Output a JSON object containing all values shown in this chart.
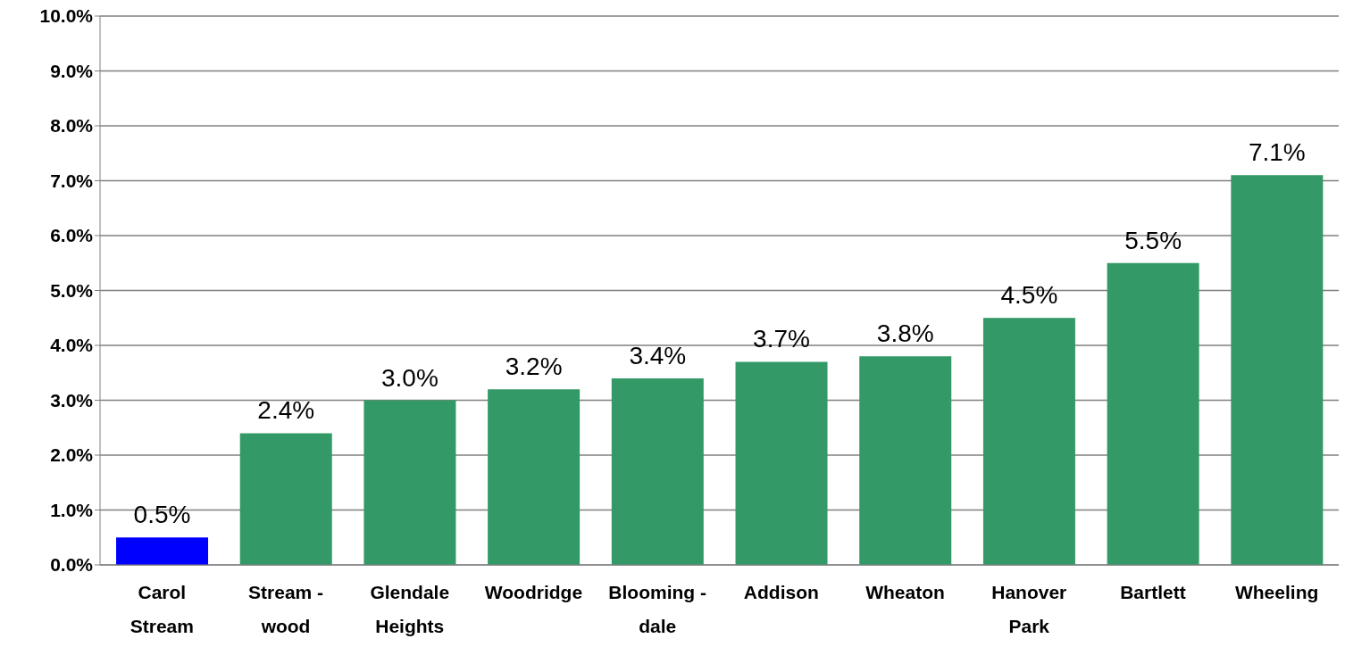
{
  "chart_data": {
    "type": "bar",
    "categories": [
      "Carol Stream",
      "Stream - wood",
      "Glendale Heights",
      "Woodridge",
      "Blooming - dale",
      "Addison",
      "Wheaton",
      "Hanover Park",
      "Bartlett",
      "Wheeling"
    ],
    "values": [
      0.5,
      2.4,
      3.0,
      3.2,
      3.4,
      3.7,
      3.8,
      4.5,
      5.5,
      7.1
    ],
    "colors": [
      "#0000ff",
      "#339966",
      "#339966",
      "#339966",
      "#339966",
      "#339966",
      "#339966",
      "#339966",
      "#339966",
      "#339966"
    ],
    "value_labels": [
      "0.5%",
      "2.4%",
      "3.0%",
      "3.2%",
      "3.4%",
      "3.7%",
      "3.8%",
      "4.5%",
      "5.5%",
      "7.1%"
    ],
    "ylim": [
      0,
      10
    ],
    "yticks": [
      {
        "value": 0,
        "label": "0.0%"
      },
      {
        "value": 1,
        "label": "1.0%"
      },
      {
        "value": 2,
        "label": "2.0%"
      },
      {
        "value": 3,
        "label": "3.0%"
      },
      {
        "value": 4,
        "label": "4.0%"
      },
      {
        "value": 5,
        "label": "5.0%"
      },
      {
        "value": 6,
        "label": "6.0%"
      },
      {
        "value": 7,
        "label": "7.0%"
      },
      {
        "value": 8,
        "label": "8.0%"
      },
      {
        "value": 9,
        "label": "9.0%"
      },
      {
        "value": 10,
        "label": "10.0%"
      }
    ],
    "grid": "y"
  }
}
